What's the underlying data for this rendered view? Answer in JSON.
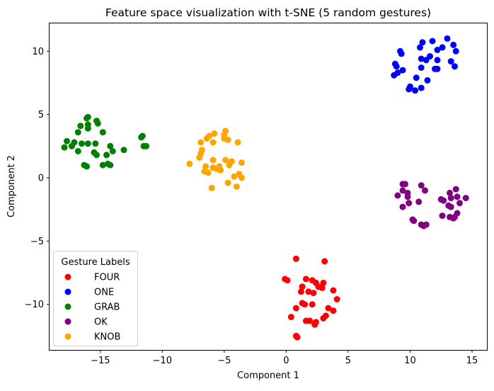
{
  "chart_data": {
    "type": "scatter",
    "title": "Feature space visualization with t-SNE (5 random gestures)",
    "xlabel": "Component 1",
    "ylabel": "Component 2",
    "xlim": [
      -19.1,
      16.2
    ],
    "ylim": [
      -13.6,
      12.2
    ],
    "xticks": [
      -15,
      -10,
      -5,
      0,
      5,
      10,
      15
    ],
    "yticks": [
      -10,
      -5,
      0,
      5,
      10
    ],
    "xtick_labels": [
      "−15",
      "−10",
      "−5",
      "0",
      "5",
      "10",
      "15"
    ],
    "ytick_labels": [
      "−10",
      "−5",
      "0",
      "5",
      "10"
    ],
    "grid": false,
    "legend": {
      "title": "Gesture Labels",
      "placement": "lower-left"
    },
    "series": [
      {
        "name": "FOUR",
        "color": "#ff0000",
        "points": [
          [
            0.8,
            -6.4
          ],
          [
            3.1,
            -6.6
          ],
          [
            -0.1,
            -8.0
          ],
          [
            0.1,
            -8.1
          ],
          [
            1.6,
            -8.0
          ],
          [
            2.1,
            -8.1
          ],
          [
            2.4,
            -8.3
          ],
          [
            3.0,
            -8.3
          ],
          [
            1.3,
            -8.6
          ],
          [
            2.6,
            -8.6
          ],
          [
            2.9,
            -8.7
          ],
          [
            3.8,
            -8.9
          ],
          [
            1.2,
            -9.0
          ],
          [
            1.8,
            -9.0
          ],
          [
            2.2,
            -9.1
          ],
          [
            4.1,
            -9.6
          ],
          [
            1.3,
            -9.9
          ],
          [
            1.5,
            -10.0
          ],
          [
            2.1,
            -10.0
          ],
          [
            0.8,
            -10.3
          ],
          [
            3.4,
            -10.3
          ],
          [
            3.8,
            -10.5
          ],
          [
            0.4,
            -11.0
          ],
          [
            3.2,
            -10.9
          ],
          [
            3.0,
            -11.1
          ],
          [
            1.6,
            -11.3
          ],
          [
            1.9,
            -11.3
          ],
          [
            2.4,
            -11.4
          ],
          [
            2.3,
            -11.6
          ],
          [
            0.8,
            -12.5
          ],
          [
            0.9,
            -12.6
          ]
        ]
      },
      {
        "name": "ONE",
        "color": "#0000ff",
        "points": [
          [
            13.0,
            11.0
          ],
          [
            11.0,
            10.7
          ],
          [
            11.8,
            10.8
          ],
          [
            13.5,
            10.5
          ],
          [
            10.8,
            10.3
          ],
          [
            12.6,
            10.3
          ],
          [
            12.2,
            10.1
          ],
          [
            13.7,
            10.0
          ],
          [
            9.2,
            10.0
          ],
          [
            9.3,
            9.8
          ],
          [
            11.6,
            9.6
          ],
          [
            10.9,
            9.4
          ],
          [
            11.3,
            9.3
          ],
          [
            12.2,
            9.3
          ],
          [
            13.3,
            9.2
          ],
          [
            8.8,
            9.0
          ],
          [
            8.9,
            8.8
          ],
          [
            13.6,
            8.8
          ],
          [
            10.9,
            8.7
          ],
          [
            12.0,
            8.6
          ],
          [
            12.2,
            8.6
          ],
          [
            9.4,
            8.5
          ],
          [
            9.0,
            8.3
          ],
          [
            8.7,
            8.1
          ],
          [
            10.5,
            7.9
          ],
          [
            11.4,
            7.7
          ],
          [
            10.0,
            7.2
          ],
          [
            9.9,
            7.0
          ],
          [
            10.9,
            7.1
          ],
          [
            10.4,
            6.9
          ]
        ]
      },
      {
        "name": "GRAB",
        "color": "#008000",
        "points": [
          [
            -16.0,
            4.8
          ],
          [
            -16.1,
            4.7
          ],
          [
            -15.3,
            4.5
          ],
          [
            -15.2,
            4.3
          ],
          [
            -16.0,
            4.2
          ],
          [
            -16.6,
            4.1
          ],
          [
            -16.0,
            3.9
          ],
          [
            -16.8,
            3.6
          ],
          [
            -14.8,
            3.6
          ],
          [
            -11.6,
            3.3
          ],
          [
            -11.7,
            3.2
          ],
          [
            -17.7,
            2.9
          ],
          [
            -17.1,
            2.8
          ],
          [
            -16.5,
            2.7
          ],
          [
            -16.0,
            2.7
          ],
          [
            -15.4,
            2.7
          ],
          [
            -17.3,
            2.5
          ],
          [
            -17.9,
            2.4
          ],
          [
            -14.2,
            2.5
          ],
          [
            -11.5,
            2.5
          ],
          [
            -11.3,
            2.5
          ],
          [
            -15.5,
            2.0
          ],
          [
            -15.3,
            1.8
          ],
          [
            -14.5,
            1.8
          ],
          [
            -14.0,
            2.1
          ],
          [
            -13.1,
            2.2
          ],
          [
            -16.8,
            2.1
          ],
          [
            -14.8,
            1.0
          ],
          [
            -14.4,
            1.1
          ],
          [
            -14.2,
            1.0
          ],
          [
            -16.3,
            1.0
          ],
          [
            -16.1,
            0.9
          ]
        ]
      },
      {
        "name": "OK",
        "color": "#800080",
        "points": [
          [
            9.4,
            -0.5
          ],
          [
            9.6,
            -0.5
          ],
          [
            10.9,
            -0.6
          ],
          [
            13.7,
            -0.9
          ],
          [
            9.4,
            -1.0
          ],
          [
            9.8,
            -1.2
          ],
          [
            11.2,
            -1.0
          ],
          [
            13.2,
            -1.2
          ],
          [
            9.0,
            -1.4
          ],
          [
            9.8,
            -1.5
          ],
          [
            13.8,
            -1.5
          ],
          [
            14.5,
            -1.6
          ],
          [
            12.5,
            -1.7
          ],
          [
            13.3,
            -1.6
          ],
          [
            12.7,
            -1.8
          ],
          [
            10.7,
            -1.9
          ],
          [
            9.9,
            -2.0
          ],
          [
            14.0,
            -2.0
          ],
          [
            13.1,
            -2.2
          ],
          [
            13.3,
            -2.3
          ],
          [
            9.4,
            -2.3
          ],
          [
            13.8,
            -2.8
          ],
          [
            12.6,
            -3.0
          ],
          [
            13.2,
            -3.1
          ],
          [
            13.6,
            -3.1
          ],
          [
            13.5,
            -3.2
          ],
          [
            10.2,
            -3.3
          ],
          [
            10.3,
            -3.4
          ],
          [
            10.9,
            -3.7
          ],
          [
            11.1,
            -3.8
          ],
          [
            11.3,
            -3.7
          ]
        ]
      },
      {
        "name": "KNOB",
        "color": "#ffa500",
        "points": [
          [
            -4.9,
            3.7
          ],
          [
            -5.0,
            3.4
          ],
          [
            -5.8,
            3.5
          ],
          [
            -6.2,
            3.3
          ],
          [
            -6.4,
            3.1
          ],
          [
            -5.0,
            3.1
          ],
          [
            -4.7,
            3.0
          ],
          [
            -6.9,
            2.8
          ],
          [
            -5.9,
            2.8
          ],
          [
            -3.9,
            2.8
          ],
          [
            -6.8,
            2.2
          ],
          [
            -6.9,
            1.9
          ],
          [
            -7.0,
            1.6
          ],
          [
            -5.9,
            1.4
          ],
          [
            -4.9,
            1.4
          ],
          [
            -4.4,
            1.3
          ],
          [
            -3.6,
            1.2
          ],
          [
            -4.6,
            1.0
          ],
          [
            -6.5,
            0.9
          ],
          [
            -5.4,
            0.9
          ],
          [
            -5.9,
            0.8
          ],
          [
            -5.6,
            0.7
          ],
          [
            -6.6,
            0.5
          ],
          [
            -6.3,
            0.4
          ],
          [
            -5.3,
            0.6
          ],
          [
            -3.8,
            0.3
          ],
          [
            -4.2,
            0.1
          ],
          [
            -3.6,
            0.0
          ],
          [
            -4.7,
            -0.4
          ],
          [
            -4.0,
            -0.7
          ],
          [
            -6.0,
            -0.8
          ],
          [
            -7.8,
            1.1
          ]
        ]
      }
    ]
  }
}
